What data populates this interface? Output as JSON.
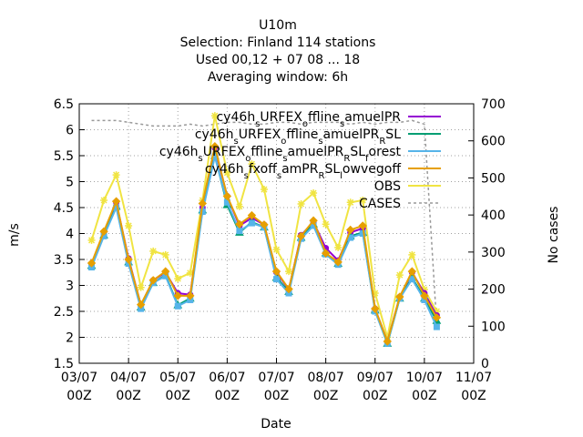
{
  "chart_data": {
    "type": "line",
    "title": [
      "U10m",
      "Selection: Finland    114 stations",
      "Used  00,12  + 07 08 ... 18",
      "Averaging window:  6h"
    ],
    "xlabel": "Date",
    "ylabel": "m/s",
    "y2label": "No cases",
    "x": [
      6,
      12,
      18,
      24,
      30,
      36,
      42,
      48,
      54,
      60,
      66,
      72,
      78,
      84,
      90,
      96,
      102,
      108,
      114,
      120,
      126,
      132,
      138,
      144,
      150,
      156,
      162,
      168,
      174
    ],
    "xlim": [
      0,
      192
    ],
    "xticks": [
      {
        "value": 0,
        "label": "03/07 00Z"
      },
      {
        "value": 24,
        "label": "04/07 00Z"
      },
      {
        "value": 48,
        "label": "05/07 00Z"
      },
      {
        "value": 72,
        "label": "06/07 00Z"
      },
      {
        "value": 96,
        "label": "07/07 00Z"
      },
      {
        "value": 120,
        "label": "08/07 00Z"
      },
      {
        "value": 144,
        "label": "09/07 00Z"
      },
      {
        "value": 168,
        "label": "10/07 00Z"
      },
      {
        "value": 192,
        "label": "11/07 00Z"
      }
    ],
    "ylim": [
      1.5,
      6.5
    ],
    "yticks": [
      1.5,
      2,
      2.5,
      3,
      3.5,
      4,
      4.5,
      5,
      5.5,
      6,
      6.5
    ],
    "y2lim": [
      0,
      700
    ],
    "y2ticks": [
      0,
      100,
      200,
      300,
      400,
      500,
      600,
      700
    ],
    "grid": true,
    "legend": "top-right",
    "series": [
      {
        "name": "cy46h_sURFEX_offline_samuelPR",
        "color": "#9400d3",
        "marker": "circle",
        "values": [
          3.42,
          4.02,
          4.6,
          3.52,
          2.62,
          3.1,
          3.25,
          2.85,
          2.82,
          4.5,
          5.65,
          4.72,
          4.15,
          4.3,
          4.17,
          3.25,
          2.92,
          3.97,
          4.22,
          3.72,
          3.48,
          4.02,
          4.1,
          2.55,
          1.92,
          2.78,
          3.25,
          2.85,
          2.42
        ]
      },
      {
        "name": "cy46h_sURFEX_offline_samuelPR_RSL",
        "color": "#009e73",
        "marker": "triangle",
        "values": [
          3.38,
          3.97,
          4.52,
          3.45,
          2.58,
          3.05,
          3.2,
          2.62,
          2.75,
          4.45,
          5.5,
          4.55,
          4.02,
          4.22,
          4.12,
          3.15,
          2.88,
          3.92,
          4.18,
          3.62,
          3.42,
          3.95,
          4.02,
          2.52,
          1.88,
          2.75,
          3.15,
          2.75,
          2.32
        ]
      },
      {
        "name": "cy46h_sURFEX_offline_samuelPR_RSL_forest",
        "color": "#56b4e9",
        "marker": "square",
        "values": [
          3.35,
          3.95,
          4.5,
          3.42,
          2.55,
          3.05,
          3.18,
          2.6,
          2.72,
          4.42,
          5.48,
          4.6,
          4.05,
          4.2,
          4.12,
          3.12,
          2.85,
          3.9,
          4.15,
          3.6,
          3.4,
          3.92,
          4.0,
          2.5,
          1.88,
          2.75,
          3.12,
          2.72,
          2.2
        ]
      },
      {
        "name": "cy46h_sfxoff_samPR_RSL_lowvegoff",
        "color": "#e69f00",
        "marker": "diamond",
        "values": [
          3.43,
          4.04,
          4.62,
          3.5,
          2.63,
          3.1,
          3.27,
          2.8,
          2.8,
          4.58,
          5.68,
          4.72,
          4.18,
          4.35,
          4.17,
          3.27,
          2.93,
          3.95,
          4.25,
          3.62,
          3.45,
          4.07,
          4.15,
          2.55,
          1.92,
          2.78,
          3.27,
          2.8,
          2.38
        ]
      },
      {
        "name": "OBS",
        "color": "#f0e442",
        "marker": "star",
        "values": [
          3.87,
          4.64,
          5.13,
          4.15,
          2.96,
          3.66,
          3.59,
          3.13,
          3.24,
          4.64,
          6.27,
          5.17,
          4.52,
          5.34,
          4.85,
          3.69,
          3.27,
          4.57,
          4.78,
          4.18,
          3.73,
          4.6,
          4.64,
          2.85,
          2.0,
          3.2,
          3.59,
          2.92,
          2.5
        ]
      },
      {
        "name": "CASES",
        "color": "#999999",
        "dash": true,
        "axis": "y2",
        "values": [
          655,
          655,
          655,
          650,
          645,
          640,
          640,
          640,
          645,
          640,
          645,
          650,
          650,
          645,
          645,
          650,
          650,
          645,
          650,
          650,
          650,
          645,
          650,
          645,
          650,
          650,
          655,
          645,
          105
        ]
      }
    ]
  }
}
